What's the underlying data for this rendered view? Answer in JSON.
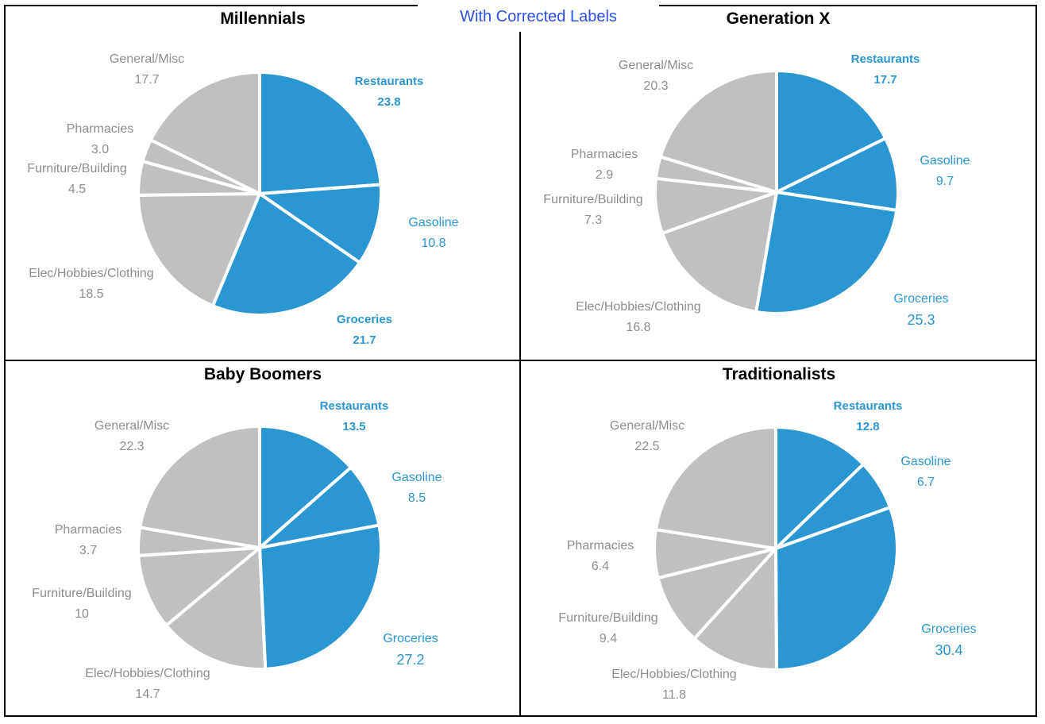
{
  "banner": "With Corrected Labels",
  "colors": {
    "highlight": "#2a96d2",
    "other": "#c0c0c0",
    "separator": "#ffffff"
  },
  "chart_data": [
    {
      "type": "pie",
      "title": "Millennials",
      "slices": [
        {
          "label": "Restaurants",
          "value": 23.8,
          "display": "23.8",
          "color": "#2a96d2"
        },
        {
          "label": "Gasoline",
          "value": 10.8,
          "display": "10.8",
          "color": "#2a96d2"
        },
        {
          "label": "Groceries",
          "value": 21.7,
          "display": "21.7",
          "color": "#2a96d2"
        },
        {
          "label": "Elec/Hobbies/Clothing",
          "value": 18.5,
          "display": "18.5",
          "color": "#c0c0c0"
        },
        {
          "label": "Furniture/Building",
          "value": 4.5,
          "display": "4.5",
          "color": "#c0c0c0"
        },
        {
          "label": "Pharmacies",
          "value": 3.0,
          "display": "3.0",
          "color": "#c0c0c0"
        },
        {
          "label": "General/Misc",
          "value": 17.7,
          "display": "17.7",
          "color": "#c0c0c0"
        }
      ]
    },
    {
      "type": "pie",
      "title": "Generation X",
      "slices": [
        {
          "label": "Restaurants",
          "value": 17.7,
          "display": "17.7",
          "color": "#2a96d2"
        },
        {
          "label": "Gasoline",
          "value": 9.7,
          "display": "9.7",
          "color": "#2a96d2"
        },
        {
          "label": "Groceries",
          "value": 25.3,
          "display": "25.3",
          "color": "#2a96d2"
        },
        {
          "label": "Elec/Hobbies/Clothing",
          "value": 16.8,
          "display": "16.8",
          "color": "#c0c0c0"
        },
        {
          "label": "Furniture/Building",
          "value": 7.3,
          "display": "7.3",
          "color": "#c0c0c0"
        },
        {
          "label": "Pharmacies",
          "value": 2.9,
          "display": "2.9",
          "color": "#c0c0c0"
        },
        {
          "label": "General/Misc",
          "value": 20.3,
          "display": "20.3",
          "color": "#c0c0c0"
        }
      ]
    },
    {
      "type": "pie",
      "title": "Baby Boomers",
      "slices": [
        {
          "label": "Restaurants",
          "value": 13.5,
          "display": "13.5",
          "color": "#2a96d2"
        },
        {
          "label": "Gasoline",
          "value": 8.5,
          "display": "8.5",
          "color": "#2a96d2"
        },
        {
          "label": "Groceries",
          "value": 27.2,
          "display": "27.2",
          "color": "#2a96d2"
        },
        {
          "label": "Elec/Hobbies/Clothing",
          "value": 14.7,
          "display": "14.7",
          "color": "#c0c0c0"
        },
        {
          "label": "Furniture/Building",
          "value": 10,
          "display": "10",
          "color": "#c0c0c0"
        },
        {
          "label": "Pharmacies",
          "value": 3.7,
          "display": "3.7",
          "color": "#c0c0c0"
        },
        {
          "label": "General/Misc",
          "value": 22.3,
          "display": "22.3",
          "color": "#c0c0c0"
        }
      ]
    },
    {
      "type": "pie",
      "title": "Traditionalists",
      "slices": [
        {
          "label": "Restaurants",
          "value": 12.8,
          "display": "12.8",
          "color": "#2a96d2"
        },
        {
          "label": "Gasoline",
          "value": 6.7,
          "display": "6.7",
          "color": "#2a96d2"
        },
        {
          "label": "Groceries",
          "value": 30.4,
          "display": "30.4",
          "color": "#2a96d2"
        },
        {
          "label": "Elec/Hobbies/Clothing",
          "value": 11.8,
          "display": "11.8",
          "color": "#c0c0c0"
        },
        {
          "label": "Furniture/Building",
          "value": 9.4,
          "display": "9.4",
          "color": "#c0c0c0"
        },
        {
          "label": "Pharmacies",
          "value": 6.4,
          "display": "6.4",
          "color": "#c0c0c0"
        },
        {
          "label": "General/Misc",
          "value": 22.5,
          "display": "22.5",
          "color": "#c0c0c0"
        }
      ]
    }
  ]
}
